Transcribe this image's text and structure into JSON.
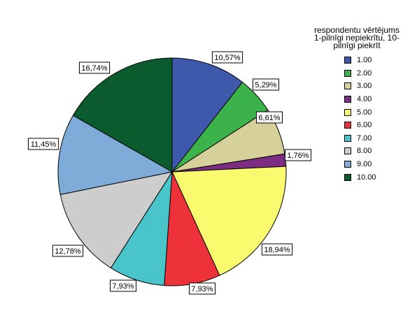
{
  "chart_data": {
    "type": "pie",
    "legend_title_lines": [
      "respondentu vērtējums",
      "1-pilnīgi nepiekrītu, 10-",
      "pilnīgi piekrīt"
    ],
    "legend_position": "right",
    "slices": [
      {
        "label": "1.00",
        "value": 10.57,
        "value_label": "10,57%",
        "color": "#3e58ac"
      },
      {
        "label": "2.00",
        "value": 5.29,
        "value_label": "5,29%",
        "color": "#3cb34a"
      },
      {
        "label": "3.00",
        "value": 6.61,
        "value_label": "6,61%",
        "color": "#d6d19b"
      },
      {
        "label": "4.00",
        "value": 1.76,
        "value_label": "1,76%",
        "color": "#7c2c83"
      },
      {
        "label": "5.00",
        "value": 18.94,
        "value_label": "18,94%",
        "color": "#fafa6e"
      },
      {
        "label": "6.00",
        "value": 7.93,
        "value_label": "7,93%",
        "color": "#ee3239"
      },
      {
        "label": "7.00",
        "value": 7.93,
        "value_label": "7,93%",
        "color": "#49c4c8"
      },
      {
        "label": "8.00",
        "value": 12.78,
        "value_label": "12,78%",
        "color": "#cdcdcd"
      },
      {
        "label": "9.00",
        "value": 11.45,
        "value_label": "11,45%",
        "color": "#7fabd9"
      },
      {
        "label": "10.00",
        "value": 16.74,
        "value_label": "16,74%",
        "color": "#0b5b2e"
      }
    ]
  }
}
